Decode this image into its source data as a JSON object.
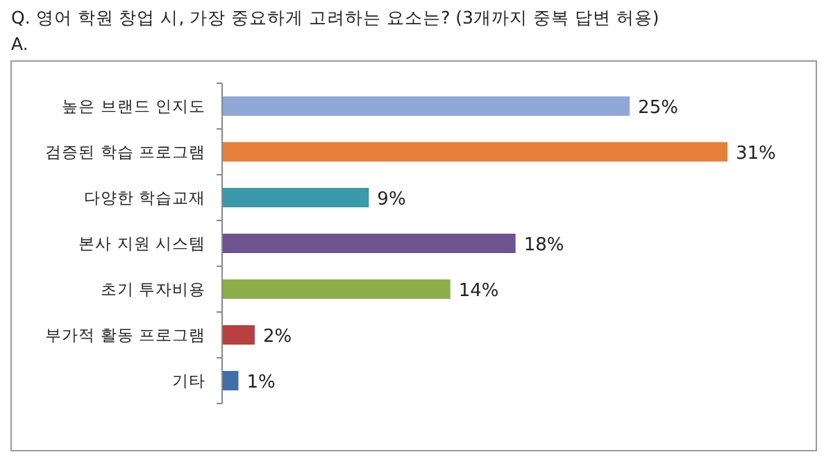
{
  "chart_data": {
    "type": "bar",
    "orientation": "horizontal",
    "title": "Q. 영어 학원 창업 시, 가장 중요하게 고려하는 요소는? (3개까지 중복 답변 허용)",
    "subtitle": "A.",
    "categories": [
      "높은 브랜드 인지도",
      "검증된 학습 프로그램",
      "다양한 학습교재",
      "본사 지원 시스템",
      "초기 투자비용",
      "부가적 활동 프로그램",
      "기타"
    ],
    "values": [
      25,
      31,
      9,
      18,
      14,
      2,
      1
    ],
    "value_labels": [
      "25%",
      "31%",
      "9%",
      "18%",
      "14%",
      "2%",
      "1%"
    ],
    "colors": [
      "#8fa8d8",
      "#e8803a",
      "#3a9aaa",
      "#6e5490",
      "#8caf48",
      "#b84040",
      "#3e6fa8"
    ],
    "tick_labels": "y"
  }
}
